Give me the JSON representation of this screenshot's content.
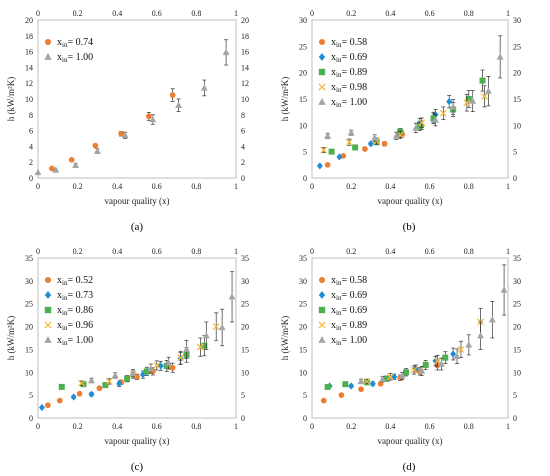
{
  "figure": {
    "xlabel": "vapour quality (x)",
    "ylabel": "h (kW/m²K)",
    "legend_prefix": "x",
    "legend_sub": "in"
  },
  "colors": {
    "orange": "#ED7D31",
    "blue": "#1F8DD6",
    "green": "#4CB050",
    "yellow": "#F4B942",
    "gray": "#A5A5A5"
  },
  "chart_data": [
    {
      "type": "scatter",
      "panel_label": "(a)",
      "xlim": [
        0,
        1
      ],
      "ylim": [
        0,
        20
      ],
      "xticks": [
        "0",
        "0.2",
        "0.4",
        "0.6",
        "0.8",
        "1"
      ],
      "yticks": [
        "0",
        "2",
        "4",
        "6",
        "8",
        "10",
        "12",
        "14",
        "16",
        "18",
        "20"
      ],
      "grid": false,
      "legend_position": "top-left",
      "series": [
        {
          "name": "= 0.74",
          "marker": "circle",
          "color": "orange",
          "points": [
            [
              0.07,
              1.2
            ],
            [
              0.17,
              2.3
            ],
            [
              0.29,
              4.1
            ],
            [
              0.42,
              5.6
            ],
            [
              0.56,
              7.8
            ],
            [
              0.68,
              10.5
            ]
          ],
          "err": [
            0,
            0.1,
            0.2,
            0.3,
            0.5,
            0.8
          ]
        },
        {
          "name": "= 1.00",
          "marker": "triangle",
          "color": "gray",
          "points": [
            [
              0.0,
              0.7
            ],
            [
              0.09,
              1.0
            ],
            [
              0.19,
              1.6
            ],
            [
              0.3,
              3.4
            ],
            [
              0.44,
              5.4
            ],
            [
              0.58,
              7.4
            ],
            [
              0.71,
              9.2
            ],
            [
              0.84,
              11.4
            ],
            [
              0.95,
              15.9
            ]
          ],
          "err": [
            0,
            0.1,
            0.2,
            0.3,
            0.4,
            0.6,
            0.8,
            1.0,
            1.6
          ]
        }
      ]
    },
    {
      "type": "scatter",
      "panel_label": "(b)",
      "xlim": [
        0,
        1
      ],
      "ylim": [
        0,
        30
      ],
      "xticks": [
        "0",
        "0.2",
        "0.4",
        "0.6",
        "0.8",
        "1"
      ],
      "yticks": [
        "0",
        "5",
        "10",
        "15",
        "20",
        "25",
        "30"
      ],
      "grid": false,
      "legend_position": "top-left",
      "series": [
        {
          "name": "= 0.58",
          "marker": "circle",
          "color": "orange",
          "points": [
            [
              0.08,
              2.5
            ],
            [
              0.16,
              4.2
            ],
            [
              0.27,
              5.5
            ],
            [
              0.37,
              6.5
            ],
            [
              0.46,
              8.3
            ],
            [
              0.56,
              10.0
            ],
            [
              0.62,
              11.5
            ]
          ],
          "err": [
            0,
            0.2,
            0.3,
            0.4,
            0.6,
            0.8,
            1.0
          ]
        },
        {
          "name": "= 0.69",
          "marker": "diamond",
          "color": "blue",
          "points": [
            [
              0.04,
              2.3
            ],
            [
              0.14,
              4.0
            ],
            [
              0.3,
              6.5
            ],
            [
              0.44,
              8.2
            ],
            [
              0.55,
              10.5
            ],
            [
              0.63,
              12.0
            ],
            [
              0.7,
              14.5
            ]
          ],
          "err": [
            0,
            0.2,
            0.3,
            0.5,
            0.8,
            1.0,
            1.2
          ]
        },
        {
          "name": "= 0.89",
          "marker": "square",
          "color": "green",
          "points": [
            [
              0.1,
              5.0
            ],
            [
              0.22,
              5.8
            ],
            [
              0.33,
              6.8
            ],
            [
              0.45,
              8.8
            ],
            [
              0.55,
              9.8
            ],
            [
              0.62,
              11.3
            ],
            [
              0.72,
              13.0
            ],
            [
              0.8,
              15.0
            ],
            [
              0.87,
              18.5
            ]
          ],
          "err": [
            0,
            0.3,
            0.4,
            0.6,
            0.8,
            1.0,
            1.3,
            1.6,
            2.0
          ]
        },
        {
          "name": "= 0.98",
          "marker": "x",
          "color": "yellow",
          "points": [
            [
              0.06,
              5.3
            ],
            [
              0.19,
              6.8
            ],
            [
              0.33,
              7.0
            ],
            [
              0.45,
              8.2
            ],
            [
              0.56,
              10.5
            ],
            [
              0.67,
              12.3
            ],
            [
              0.79,
              14.3
            ],
            [
              0.88,
              15.5
            ]
          ],
          "err": [
            0.5,
            0.6,
            0.6,
            0.7,
            0.9,
            1.2,
            1.6,
            2.0
          ]
        },
        {
          "name": "= 1.00",
          "marker": "triangle",
          "color": "gray",
          "points": [
            [
              0.08,
              8.0
            ],
            [
              0.2,
              8.6
            ],
            [
              0.32,
              7.6
            ],
            [
              0.43,
              8.0
            ],
            [
              0.53,
              9.5
            ],
            [
              0.63,
              11.0
            ],
            [
              0.72,
              13.5
            ],
            [
              0.82,
              14.6
            ],
            [
              0.9,
              16.5
            ],
            [
              0.96,
              23.0
            ]
          ],
          "err": [
            0.5,
            0.5,
            0.6,
            0.7,
            0.9,
            1.1,
            1.4,
            2.0,
            2.8,
            4.0
          ]
        }
      ]
    },
    {
      "type": "scatter",
      "panel_label": "(c)",
      "xlim": [
        0,
        1
      ],
      "ylim": [
        0,
        35
      ],
      "xticks": [
        "0",
        "0.2",
        "0.4",
        "0.6",
        "0.8",
        "1"
      ],
      "yticks": [
        "0",
        "5",
        "10",
        "15",
        "20",
        "25",
        "30",
        "35"
      ],
      "grid": false,
      "legend_position": "top-left",
      "series": [
        {
          "name": "= 0.52",
          "marker": "circle",
          "color": "orange",
          "points": [
            [
              0.05,
              2.8
            ],
            [
              0.11,
              3.8
            ],
            [
              0.21,
              5.3
            ],
            [
              0.31,
              6.5
            ],
            [
              0.42,
              7.8
            ],
            [
              0.5,
              9.0
            ],
            [
              0.58,
              10.2
            ],
            [
              0.68,
              11.0
            ]
          ],
          "err": [
            0,
            0.2,
            0.3,
            0.4,
            0.5,
            0.6,
            0.8,
            1.0
          ]
        },
        {
          "name": "= 0.73",
          "marker": "diamond",
          "color": "blue",
          "points": [
            [
              0.02,
              2.3
            ],
            [
              0.18,
              4.6
            ],
            [
              0.27,
              5.2
            ],
            [
              0.41,
              7.5
            ],
            [
              0.53,
              9.5
            ],
            [
              0.62,
              11.4
            ],
            [
              0.72,
              13.0
            ]
          ],
          "err": [
            0,
            0.3,
            0.4,
            0.6,
            0.8,
            1.0,
            1.3
          ]
        },
        {
          "name": "= 0.86",
          "marker": "square",
          "color": "green",
          "points": [
            [
              0.12,
              6.8
            ],
            [
              0.23,
              7.4
            ],
            [
              0.34,
              7.2
            ],
            [
              0.45,
              8.6
            ],
            [
              0.55,
              10.2
            ],
            [
              0.65,
              11.4
            ],
            [
              0.75,
              13.8
            ],
            [
              0.84,
              15.8
            ]
          ],
          "err": [
            0,
            0.4,
            0.5,
            0.7,
            0.9,
            1.2,
            1.6,
            2.2
          ]
        },
        {
          "name": "= 0.96",
          "marker": "x",
          "color": "yellow",
          "points": [
            [
              0.22,
              7.6
            ],
            [
              0.36,
              8.0
            ],
            [
              0.48,
              9.5
            ],
            [
              0.6,
              11.5
            ],
            [
              0.72,
              13.2
            ],
            [
              0.82,
              15.5
            ],
            [
              0.9,
              20.0
            ]
          ],
          "err": [
            0.5,
            0.6,
            0.8,
            1.0,
            1.4,
            2.0,
            3.0
          ]
        },
        {
          "name": "= 1.00",
          "marker": "triangle",
          "color": "gray",
          "points": [
            [
              0.27,
              8.2
            ],
            [
              0.39,
              9.3
            ],
            [
              0.48,
              9.8
            ],
            [
              0.57,
              10.8
            ],
            [
              0.66,
              12.0
            ],
            [
              0.75,
              15.0
            ],
            [
              0.85,
              18.0
            ],
            [
              0.93,
              19.8
            ],
            [
              0.98,
              26.5
            ]
          ],
          "err": [
            0.5,
            0.6,
            0.8,
            1.0,
            1.3,
            2.0,
            3.0,
            4.0,
            5.5
          ]
        }
      ]
    },
    {
      "type": "scatter",
      "panel_label": "(d)",
      "xlim": [
        0,
        1
      ],
      "ylim": [
        0,
        35
      ],
      "xticks": [
        "0",
        "0.2",
        "0.4",
        "0.6",
        "0.8",
        "1"
      ],
      "yticks": [
        "0",
        "5",
        "10",
        "15",
        "20",
        "25",
        "30",
        "35"
      ],
      "grid": false,
      "legend_position": "top-left",
      "series": [
        {
          "name": "= 0.58",
          "marker": "circle",
          "color": "orange",
          "points": [
            [
              0.06,
              3.8
            ],
            [
              0.15,
              5.0
            ],
            [
              0.25,
              6.3
            ],
            [
              0.35,
              7.5
            ],
            [
              0.45,
              8.8
            ],
            [
              0.55,
              10.2
            ],
            [
              0.64,
              11.5
            ]
          ],
          "err": [
            0,
            0.2,
            0.3,
            0.4,
            0.6,
            0.8,
            1.0
          ]
        },
        {
          "name": "= 0.69",
          "marker": "diamond",
          "color": "blue",
          "points": [
            [
              0.09,
              7.0
            ],
            [
              0.2,
              7.0
            ],
            [
              0.31,
              7.5
            ],
            [
              0.42,
              9.0
            ],
            [
              0.53,
              10.8
            ],
            [
              0.63,
              12.5
            ],
            [
              0.72,
              14.0
            ]
          ],
          "err": [
            0,
            0.3,
            0.4,
            0.6,
            0.8,
            1.0,
            1.3
          ]
        },
        {
          "name": "= 0.69",
          "marker": "square",
          "color": "green",
          "points": [
            [
              0.08,
              6.8
            ],
            [
              0.17,
              7.4
            ],
            [
              0.28,
              7.8
            ],
            [
              0.38,
              8.6
            ],
            [
              0.48,
              10.0
            ],
            [
              0.58,
              11.6
            ],
            [
              0.68,
              13.2
            ]
          ],
          "err": [
            0,
            0.3,
            0.4,
            0.6,
            0.8,
            1.0,
            1.3
          ]
        },
        {
          "name": "= 0.89",
          "marker": "x",
          "color": "yellow",
          "points": [
            [
              0.28,
              8.0
            ],
            [
              0.4,
              9.0
            ],
            [
              0.52,
              10.5
            ],
            [
              0.64,
              12.5
            ],
            [
              0.76,
              15.0
            ],
            [
              0.86,
              21.0
            ]
          ],
          "err": [
            0.5,
            0.7,
            0.9,
            1.2,
            1.8,
            3.0
          ]
        },
        {
          "name": "= 1.00",
          "marker": "triangle",
          "color": "gray",
          "points": [
            [
              0.25,
              8.0
            ],
            [
              0.36,
              8.5
            ],
            [
              0.46,
              9.2
            ],
            [
              0.56,
              10.3
            ],
            [
              0.66,
              11.8
            ],
            [
              0.74,
              13.5
            ],
            [
              0.8,
              16.0
            ],
            [
              0.86,
              18.0
            ],
            [
              0.92,
              21.5
            ],
            [
              0.98,
              28.0
            ]
          ],
          "err": [
            0.5,
            0.6,
            0.8,
            1.0,
            1.3,
            1.6,
            2.2,
            3.0,
            4.0,
            5.5
          ]
        }
      ]
    }
  ]
}
